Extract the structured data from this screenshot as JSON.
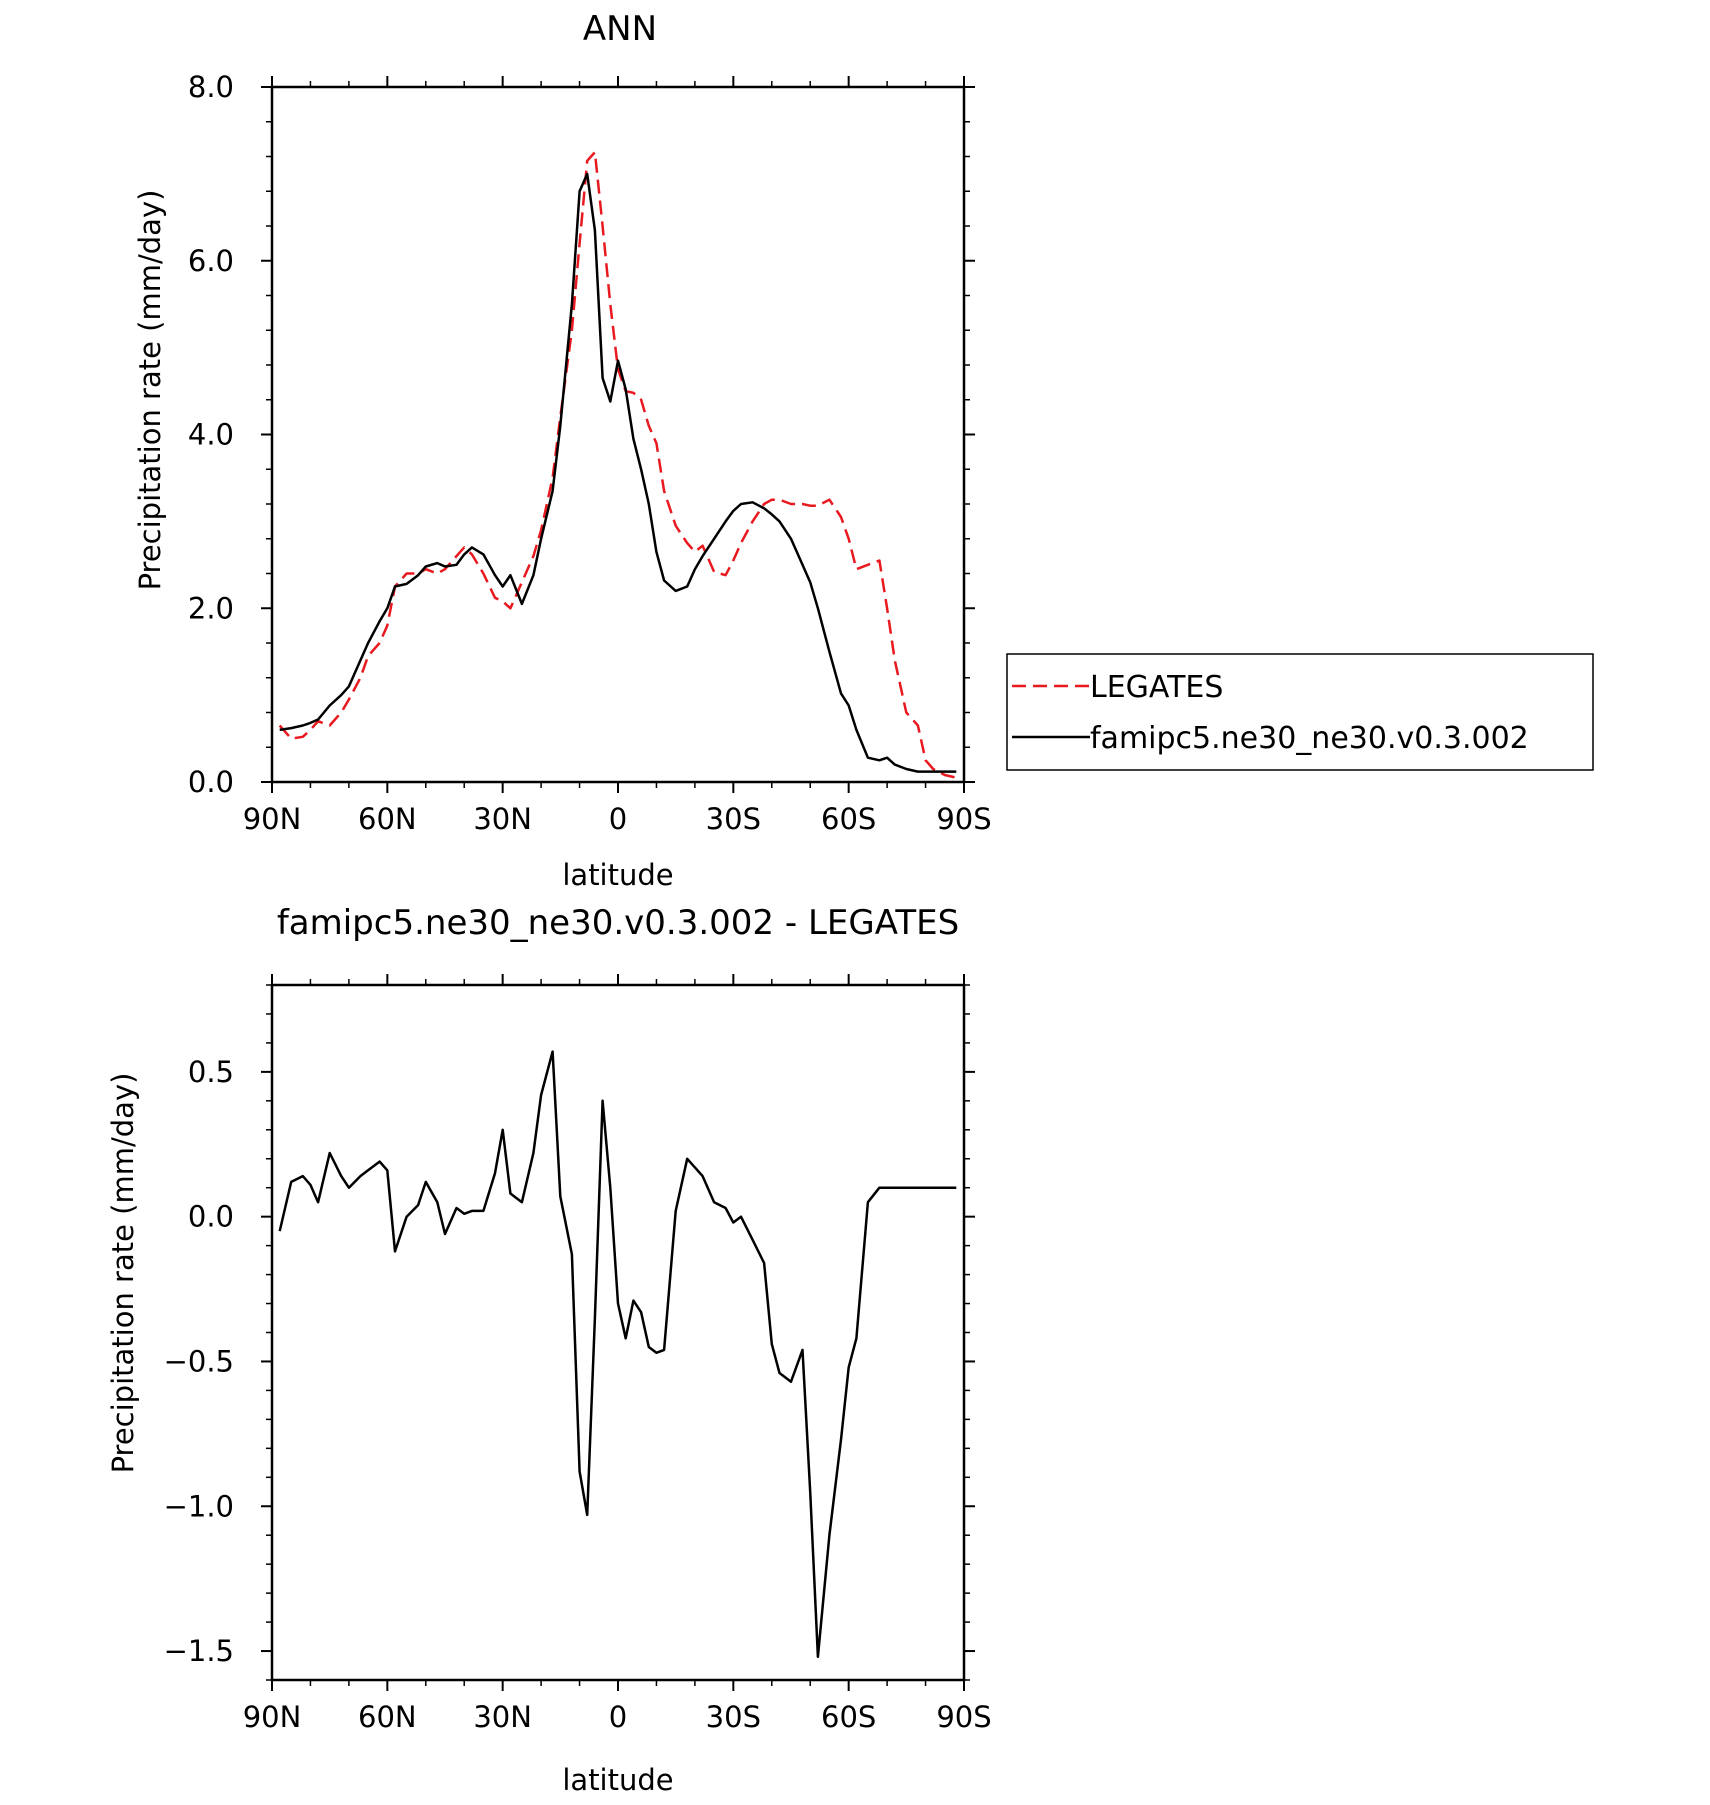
{
  "chart_data": [
    {
      "type": "line",
      "title": "ANN",
      "xlabel": "latitude",
      "ylabel": "Precipitation rate (mm/day)",
      "xlim": [
        90,
        -90
      ],
      "ylim": [
        0,
        8
      ],
      "x_ticks": [
        90,
        60,
        30,
        0,
        -30,
        -60,
        -90
      ],
      "x_tick_labels": [
        "90N",
        "60N",
        "30N",
        "0",
        "30S",
        "60S",
        "90S"
      ],
      "y_ticks": [
        0,
        2,
        4,
        6,
        8
      ],
      "y_tick_labels": [
        "0.0",
        "2.0",
        "4.0",
        "6.0",
        "8.0"
      ],
      "legend_position": "right",
      "series": [
        {
          "name": "LEGATES",
          "color": "#e8191f",
          "dash": "dashed",
          "x": [
            88,
            85,
            82,
            80,
            78,
            75,
            72,
            70,
            67,
            65,
            62,
            60,
            58,
            55,
            52,
            50,
            47,
            45,
            42,
            40,
            38,
            35,
            32,
            30,
            28,
            25,
            22,
            20,
            17,
            15,
            12,
            10,
            8,
            6,
            4,
            2,
            0,
            -2,
            -4,
            -6,
            -8,
            -10,
            -12,
            -15,
            -18,
            -20,
            -22,
            -25,
            -28,
            -30,
            -32,
            -35,
            -38,
            -40,
            -42,
            -45,
            -48,
            -50,
            -52,
            -55,
            -58,
            -60,
            -62,
            -65,
            -68,
            -70,
            -72,
            -75,
            -78,
            -80,
            -82,
            -85,
            -88
          ],
          "y": [
            0.65,
            0.5,
            0.52,
            0.6,
            0.7,
            0.65,
            0.8,
            0.95,
            1.2,
            1.45,
            1.6,
            1.8,
            2.25,
            2.4,
            2.4,
            2.45,
            2.4,
            2.45,
            2.6,
            2.7,
            2.62,
            2.4,
            2.12,
            2.08,
            2.0,
            2.3,
            2.6,
            2.9,
            3.5,
            4.2,
            5.2,
            6.2,
            7.15,
            7.25,
            6.4,
            5.5,
            4.75,
            4.5,
            4.48,
            4.4,
            4.1,
            3.9,
            3.35,
            2.95,
            2.75,
            2.65,
            2.72,
            2.42,
            2.38,
            2.55,
            2.75,
            3.0,
            3.2,
            3.25,
            3.25,
            3.2,
            3.2,
            3.18,
            3.18,
            3.25,
            3.05,
            2.8,
            2.45,
            2.5,
            2.55,
            2.0,
            1.4,
            0.8,
            0.65,
            0.25,
            0.15,
            0.08,
            0.05
          ]
        },
        {
          "name": "famipc5.ne30_ne30.v0.3.002",
          "color": "#000000",
          "dash": "solid",
          "x": [
            88,
            85,
            82,
            80,
            78,
            75,
            72,
            70,
            67,
            65,
            62,
            60,
            58,
            55,
            52,
            50,
            47,
            45,
            42,
            40,
            38,
            35,
            32,
            30,
            28,
            25,
            22,
            20,
            17,
            15,
            12,
            10,
            8,
            6,
            4,
            2,
            0,
            -2,
            -4,
            -6,
            -8,
            -10,
            -12,
            -15,
            -18,
            -20,
            -22,
            -25,
            -28,
            -30,
            -32,
            -35,
            -38,
            -40,
            -42,
            -45,
            -48,
            -50,
            -52,
            -55,
            -58,
            -60,
            -62,
            -65,
            -68,
            -70,
            -72,
            -75,
            -78,
            -80,
            -82,
            -85,
            -88
          ],
          "y": [
            0.6,
            0.62,
            0.65,
            0.68,
            0.72,
            0.88,
            1.0,
            1.1,
            1.4,
            1.6,
            1.85,
            2.0,
            2.25,
            2.28,
            2.38,
            2.48,
            2.52,
            2.48,
            2.5,
            2.62,
            2.7,
            2.62,
            2.38,
            2.25,
            2.38,
            2.05,
            2.38,
            2.8,
            3.35,
            4.1,
            5.5,
            6.8,
            7.0,
            6.35,
            4.65,
            4.38,
            4.85,
            4.52,
            3.95,
            3.6,
            3.2,
            2.65,
            2.32,
            2.2,
            2.25,
            2.45,
            2.6,
            2.8,
            3.0,
            3.12,
            3.2,
            3.22,
            3.15,
            3.08,
            3.0,
            2.8,
            2.5,
            2.3,
            2.0,
            1.5,
            1.02,
            0.88,
            0.6,
            0.28,
            0.25,
            0.28,
            0.2,
            0.15,
            0.12,
            0.12,
            0.12,
            0.12,
            0.12
          ]
        }
      ]
    },
    {
      "type": "line",
      "title": "famipc5.ne30_ne30.v0.3.002 - LEGATES",
      "xlabel": "latitude",
      "ylabel": "Precipitation rate (mm/day)",
      "xlim": [
        90,
        -90
      ],
      "ylim": [
        -1.6,
        0.8
      ],
      "x_ticks": [
        90,
        60,
        30,
        0,
        -30,
        -60,
        -90
      ],
      "x_tick_labels": [
        "90N",
        "60N",
        "30N",
        "0",
        "30S",
        "60S",
        "90S"
      ],
      "y_ticks": [
        -1.5,
        -1.0,
        -0.5,
        0.0,
        0.5
      ],
      "y_tick_labels": [
        "−1.5",
        "−1.0",
        "−0.5",
        "0.0",
        "0.5"
      ],
      "series": [
        {
          "name": "",
          "color": "#000000",
          "dash": "solid",
          "x": [
            88,
            85,
            82,
            80,
            78,
            75,
            72,
            70,
            67,
            65,
            62,
            60,
            58,
            55,
            52,
            50,
            47,
            45,
            42,
            40,
            38,
            35,
            32,
            30,
            28,
            25,
            22,
            20,
            17,
            15,
            12,
            10,
            8,
            6,
            4,
            2,
            0,
            -2,
            -4,
            -6,
            -8,
            -10,
            -12,
            -15,
            -18,
            -20,
            -22,
            -25,
            -28,
            -30,
            -32,
            -35,
            -38,
            -40,
            -42,
            -45,
            -48,
            -50,
            -52,
            -55,
            -58,
            -60,
            -62,
            -65,
            -68,
            -70,
            -72,
            -75,
            -78,
            -80,
            -82,
            -85,
            -88
          ],
          "y": [
            -0.05,
            0.12,
            0.14,
            0.11,
            0.05,
            0.22,
            0.14,
            0.1,
            0.14,
            0.16,
            0.19,
            0.16,
            -0.12,
            0.0,
            0.04,
            0.12,
            0.05,
            -0.06,
            0.03,
            0.01,
            0.02,
            0.02,
            0.15,
            0.3,
            0.08,
            0.05,
            0.22,
            0.42,
            0.57,
            0.07,
            -0.13,
            -0.88,
            -1.03,
            -0.35,
            0.4,
            0.1,
            -0.3,
            -0.42,
            -0.29,
            -0.33,
            -0.45,
            -0.47,
            -0.46,
            0.02,
            0.2,
            0.17,
            0.14,
            0.05,
            0.03,
            -0.02,
            0.0,
            -0.08,
            -0.16,
            -0.44,
            -0.54,
            -0.57,
            -0.46,
            -0.95,
            -1.52,
            -1.1,
            -0.77,
            -0.52,
            -0.42,
            0.05,
            0.1,
            0.1,
            0.1,
            0.1,
            0.1,
            0.1,
            0.1,
            0.1,
            0.1
          ]
        }
      ]
    }
  ]
}
